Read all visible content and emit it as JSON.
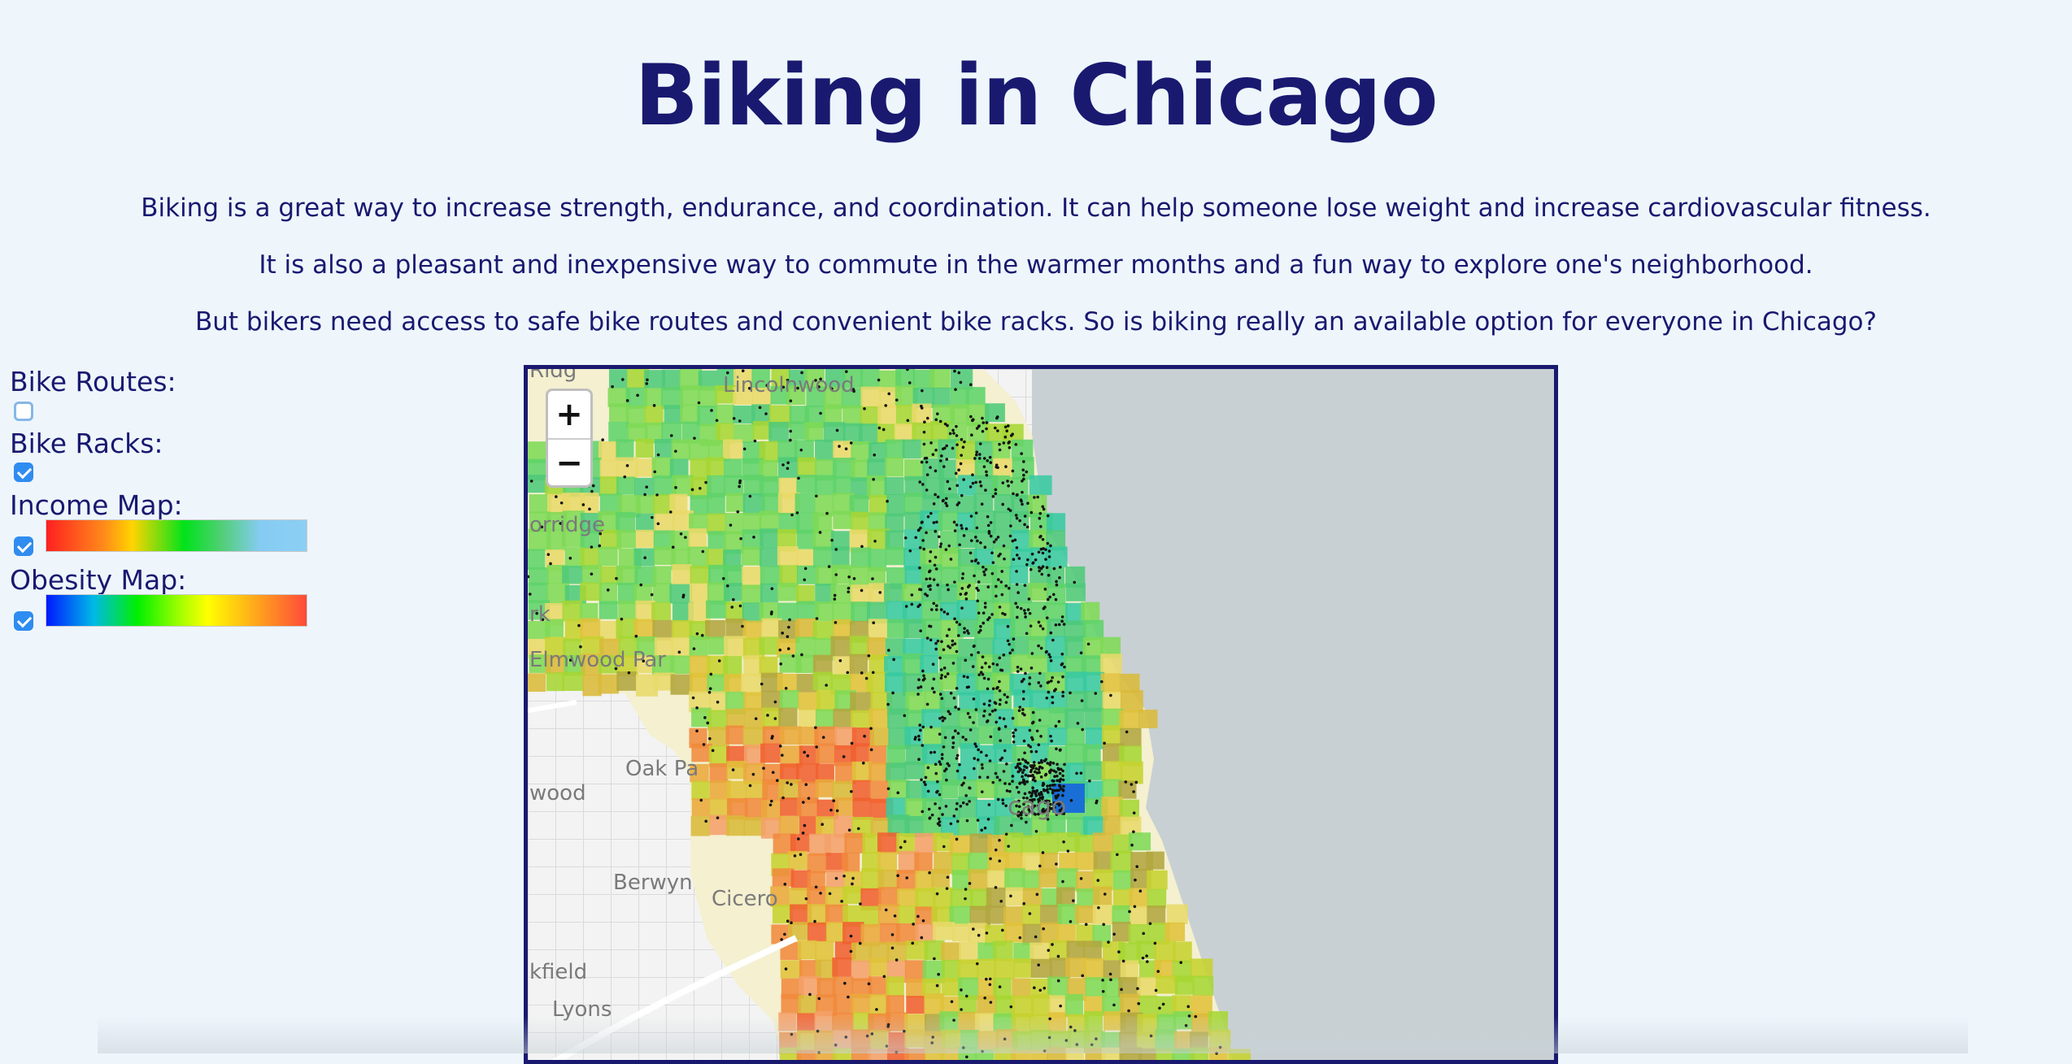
{
  "page": {
    "title": "Biking in Chicago",
    "paragraphs": [
      "Biking is a great way to increase strength, endurance, and coordination. It can help someone lose weight and increase cardiovascular fitness.",
      "It is also a pleasant and inexpensive way to commute in the warmer months and a fun way to explore one's neighborhood.",
      "But bikers need access to safe bike routes and convenient bike racks. So is biking really an available option for everyone in Chicago?"
    ]
  },
  "controls": {
    "bike_routes": {
      "label": "Bike Routes:",
      "checked": false
    },
    "bike_racks": {
      "label": "Bike Racks:",
      "checked": true
    },
    "income_map": {
      "label": "Income Map:",
      "checked": true
    },
    "obesity_map": {
      "label": "Obesity Map:",
      "checked": true
    }
  },
  "map": {
    "zoom_in_label": "+",
    "zoom_out_label": "−",
    "place_labels": {
      "lincolnwood": "Lincolnwood",
      "harwood_heights": "orridge",
      "park_ridge": "Ridg",
      "franklin_park": "rk",
      "elmwood_park": "Elmwood Par",
      "oak_park": "Oak Pa",
      "river_forest": "wood",
      "berwyn": "Berwyn",
      "cicero": "Cicero",
      "chicago": "cago",
      "brookfield": "kfield",
      "lyons": "Lyons"
    }
  },
  "colors": {
    "text": "#191970",
    "background": "#eef6fc",
    "lake": "#c8d0d3",
    "checkbox_on": "#2f8cf0"
  }
}
